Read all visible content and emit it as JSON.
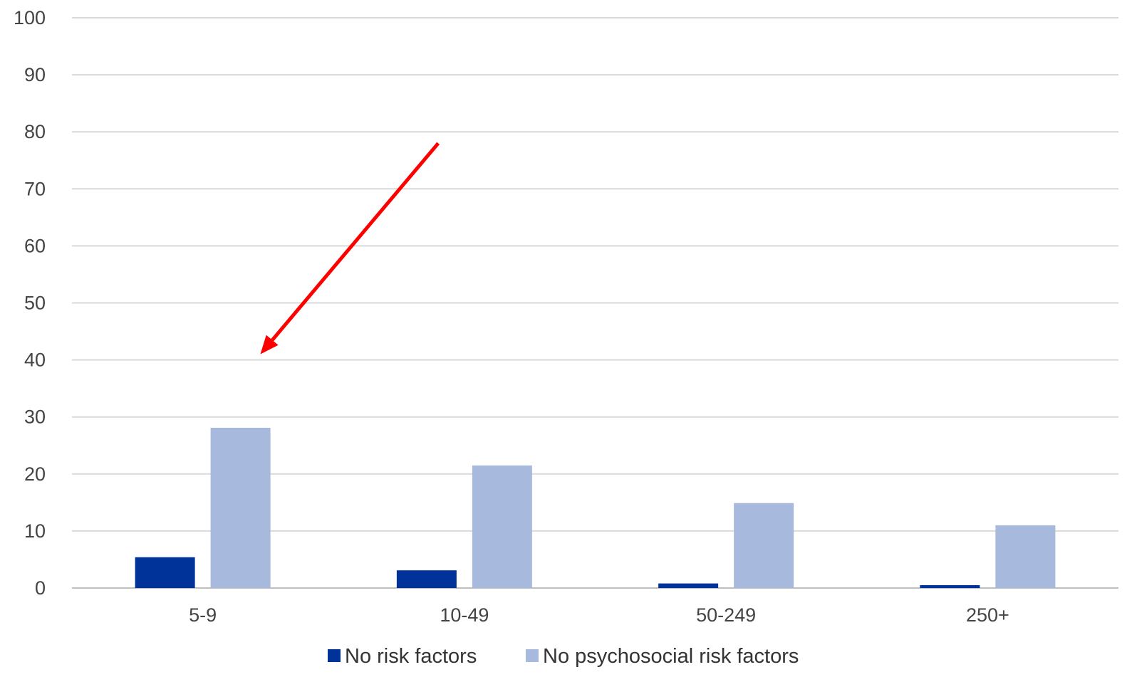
{
  "chart_data": {
    "type": "bar",
    "categories": [
      "5-9",
      "10-49",
      "50-249",
      "250+"
    ],
    "series": [
      {
        "name": "No risk factors",
        "values": [
          5.4,
          3.1,
          0.8,
          0.5
        ],
        "color": "#003399"
      },
      {
        "name": "No psychosocial risk factors",
        "values": [
          28.1,
          21.5,
          14.9,
          11.0
        ],
        "color": "#A7B9DC"
      }
    ],
    "ylim": [
      0,
      100
    ],
    "yticks": [
      0,
      10,
      20,
      30,
      40,
      50,
      60,
      70,
      80,
      90,
      100
    ],
    "grid": true,
    "legend": "bottom",
    "annotation": {
      "type": "arrow",
      "color": "#FF0000",
      "from": {
        "x": 0.35,
        "y": 78
      },
      "to": {
        "x": 0.18,
        "y": 41
      }
    }
  }
}
